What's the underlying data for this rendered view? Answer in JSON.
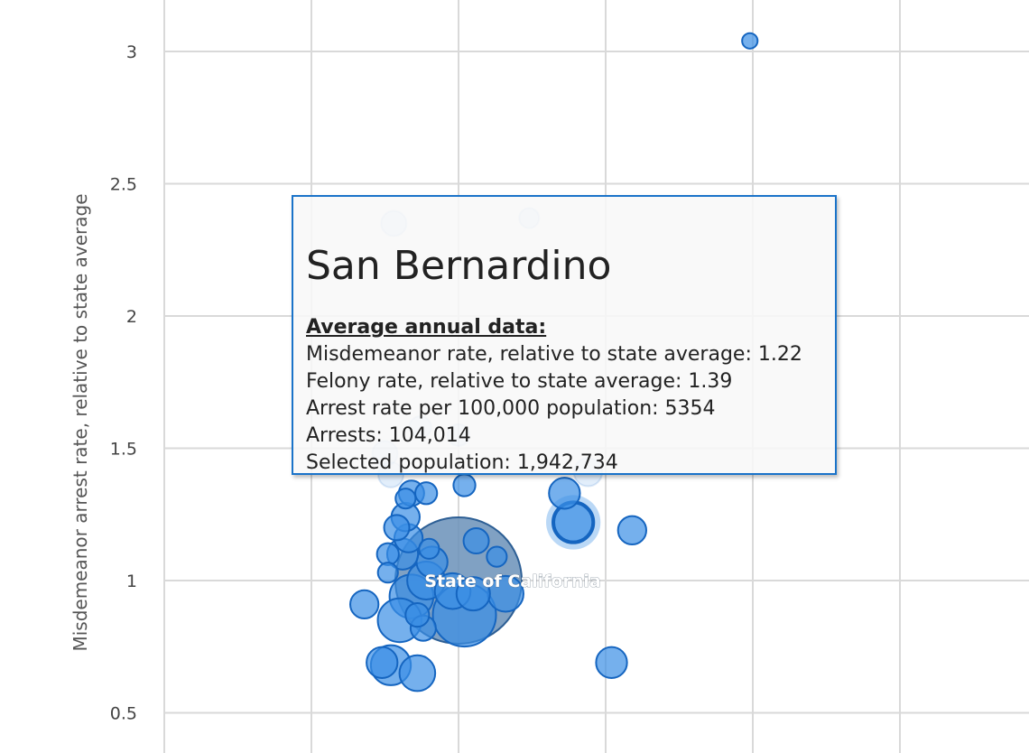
{
  "chart_data": {
    "type": "scatter",
    "ylabel": "Misdemeanor arrest rate, relative to state average",
    "xlabel": "",
    "y_ticks": [
      "0.5",
      "1",
      "1.5",
      "2",
      "2.5",
      "3"
    ],
    "ylim": [
      0.45,
      3.2
    ],
    "grid": true,
    "bubble_color": "#3a8ee6",
    "bubble_edge_color": "#1565c0",
    "highlight_color": "#6a90b8",
    "points": [
      {
        "x": 1.0,
        "y": 1.0,
        "size": 1.0,
        "label": "State of California",
        "highlight": true
      },
      {
        "x": 1.39,
        "y": 1.22,
        "size": 0.1,
        "label": "San Bernardino",
        "selected": true
      },
      {
        "x": 1.02,
        "y": 0.87,
        "size": 0.25
      },
      {
        "x": 0.84,
        "y": 0.94,
        "size": 0.12
      },
      {
        "x": 0.8,
        "y": 0.85,
        "size": 0.12
      },
      {
        "x": 0.77,
        "y": 0.68,
        "size": 0.1
      },
      {
        "x": 0.86,
        "y": 0.65,
        "size": 0.08
      },
      {
        "x": 0.74,
        "y": 0.69,
        "size": 0.06
      },
      {
        "x": 0.68,
        "y": 0.91,
        "size": 0.05
      },
      {
        "x": 0.98,
        "y": 0.96,
        "size": 0.08
      },
      {
        "x": 1.05,
        "y": 0.95,
        "size": 0.07
      },
      {
        "x": 1.16,
        "y": 0.95,
        "size": 0.08
      },
      {
        "x": 0.89,
        "y": 1.0,
        "size": 0.09
      },
      {
        "x": 0.91,
        "y": 1.07,
        "size": 0.06
      },
      {
        "x": 0.83,
        "y": 1.16,
        "size": 0.05
      },
      {
        "x": 0.82,
        "y": 1.24,
        "size": 0.05
      },
      {
        "x": 0.79,
        "y": 1.2,
        "size": 0.04
      },
      {
        "x": 0.76,
        "y": 1.1,
        "size": 0.03
      },
      {
        "x": 0.76,
        "y": 1.03,
        "size": 0.025
      },
      {
        "x": 0.81,
        "y": 1.1,
        "size": 0.06
      },
      {
        "x": 0.84,
        "y": 1.33,
        "size": 0.04
      },
      {
        "x": 0.82,
        "y": 1.31,
        "size": 0.025
      },
      {
        "x": 0.89,
        "y": 1.33,
        "size": 0.03
      },
      {
        "x": 0.9,
        "y": 1.12,
        "size": 0.025
      },
      {
        "x": 0.86,
        "y": 0.87,
        "size": 0.035
      },
      {
        "x": 0.88,
        "y": 0.82,
        "size": 0.04
      },
      {
        "x": 1.06,
        "y": 1.15,
        "size": 0.04
      },
      {
        "x": 1.02,
        "y": 1.36,
        "size": 0.03
      },
      {
        "x": 1.13,
        "y": 1.09,
        "size": 0.025
      },
      {
        "x": 1.36,
        "y": 1.33,
        "size": 0.06
      },
      {
        "x": 1.59,
        "y": 1.19,
        "size": 0.05
      },
      {
        "x": 1.52,
        "y": 0.69,
        "size": 0.06
      },
      {
        "x": 1.99,
        "y": 3.04,
        "size": 0.015
      },
      {
        "x": 0.78,
        "y": 2.35,
        "size": 0.04,
        "faded": true
      },
      {
        "x": 1.24,
        "y": 2.37,
        "size": 0.025,
        "faded": true
      },
      {
        "x": 0.75,
        "y": 1.48,
        "size": 0.04,
        "faded": true
      },
      {
        "x": 0.77,
        "y": 1.4,
        "size": 0.04,
        "faded": true
      },
      {
        "x": 1.44,
        "y": 1.41,
        "size": 0.05,
        "faded": true
      },
      {
        "x": 0.87,
        "y": 1.58,
        "size": 0.03,
        "faded": true
      },
      {
        "x": 1.0,
        "y": 1.55,
        "size": 0.03,
        "faded": true
      }
    ]
  },
  "tooltip": {
    "title": "San Bernardino",
    "subtitle": "Average annual data:",
    "lines": [
      "Misdemeanor rate, relative to state average: 1.22",
      "Felony rate, relative to state average: 1.39",
      "Arrest rate per 100,000 population: 5354",
      "Arrests: 104,014",
      "Selected population: 1,942,734"
    ]
  }
}
